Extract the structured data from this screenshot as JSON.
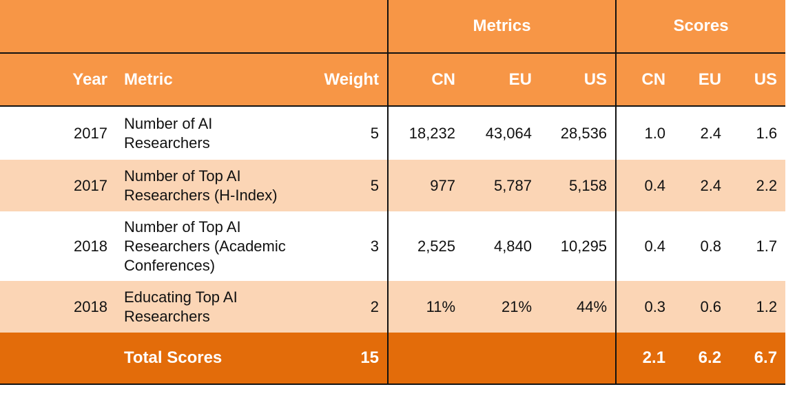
{
  "table": {
    "group_headers": [
      "Metrics",
      "Scores"
    ],
    "headers": [
      "Year",
      "Metric",
      "Weight",
      "CN",
      "EU",
      "US",
      "CN",
      "EU",
      "US"
    ],
    "rows": [
      [
        "2017",
        "Number of AI Researchers",
        "5",
        "18,232",
        "43,064",
        "28,536",
        "1.0",
        "2.4",
        "1.6"
      ],
      [
        "2017",
        "Number of Top AI Researchers (H-Index)",
        "5",
        "977",
        "5,787",
        "5,158",
        "0.4",
        "2.4",
        "2.2"
      ],
      [
        "2018",
        "Number of Top AI Researchers (Academic Conferences)",
        "3",
        "2,525",
        "4,840",
        "10,295",
        "0.4",
        "0.8",
        "1.7"
      ],
      [
        "2018",
        "Educating Top AI Researchers",
        "2",
        "11%",
        "21%",
        "44%",
        "0.3",
        "0.6",
        "1.2"
      ]
    ],
    "total": {
      "label": "Total Scores",
      "weight": "15",
      "scores": [
        "2.1",
        "6.2",
        "6.7"
      ]
    }
  }
}
